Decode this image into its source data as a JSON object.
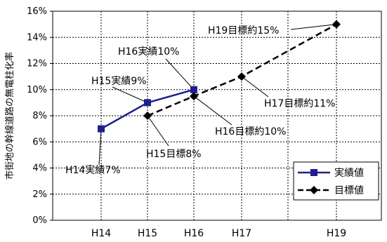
{
  "chart_data": {
    "type": "line",
    "ylabel": "市街地の幹線道路の無電柱化率",
    "y_ticks": [
      "0%",
      "2%",
      "4%",
      "6%",
      "8%",
      "10%",
      "12%",
      "14%",
      "16%"
    ],
    "ylim": [
      0,
      16
    ],
    "categories": [
      "H14",
      "H15",
      "H16",
      "H17",
      "H19"
    ],
    "grid": "horizontal and vertical dotted",
    "series": [
      {
        "name": "実績値",
        "color": "#1f1f8f",
        "style": "solid",
        "marker": "square",
        "points": [
          {
            "x": "H14",
            "y": 7
          },
          {
            "x": "H15",
            "y": 9
          },
          {
            "x": "H16",
            "y": 10
          }
        ]
      },
      {
        "name": "目標値",
        "color": "#000000",
        "style": "dashed",
        "marker": "diamond",
        "points": [
          {
            "x": "H15",
            "y": 8
          },
          {
            "x": "H16",
            "y": 9.5
          },
          {
            "x": "H17",
            "y": 11
          },
          {
            "x": "H19",
            "y": 15
          }
        ]
      }
    ],
    "annotations": [
      {
        "text": "H14実績7%",
        "x": "H14",
        "y": 7
      },
      {
        "text": "H15実績9%",
        "x": "H15",
        "y": 9
      },
      {
        "text": "H16実績10%",
        "x": "H16",
        "y": 10
      },
      {
        "text": "H15目標8%",
        "x": "H15",
        "y": 8
      },
      {
        "text": "H16目標約10%",
        "x": "H16",
        "y": 9.5
      },
      {
        "text": "H17目標約11%",
        "x": "H17",
        "y": 11
      },
      {
        "text": "H19目標約15%",
        "x": "H19",
        "y": 15
      }
    ],
    "legend": {
      "position": "bottom-right",
      "entries": [
        "実績値",
        "目標値"
      ]
    }
  }
}
